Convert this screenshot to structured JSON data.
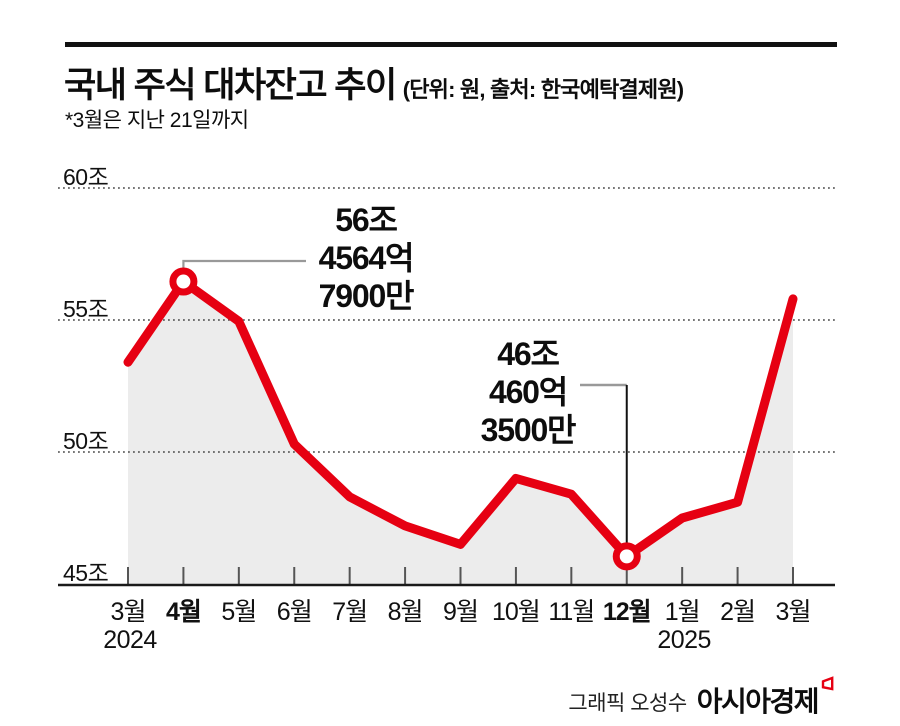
{
  "header": {
    "title": "국내 주식 대차잔고 추이",
    "unit_note": "(단위: 원, 출처: 한국예탁결제원)",
    "subtitle": "*3월은 지난 21일까지"
  },
  "chart_data": {
    "type": "area",
    "title": "국내 주식 대차잔고 추이",
    "unit": "조 원",
    "x": [
      "3월",
      "4월",
      "5월",
      "6월",
      "7월",
      "8월",
      "9월",
      "10월",
      "11월",
      "12월",
      "1월",
      "2월",
      "3월"
    ],
    "x_years": [
      {
        "label": "2024",
        "index": 0
      },
      {
        "label": "2025",
        "index": 10
      }
    ],
    "bold_x_indices": [
      1,
      9
    ],
    "values": [
      53.4,
      56.4565,
      54.95,
      50.3,
      48.3,
      47.2,
      46.5,
      49.0,
      48.4,
      46.046,
      47.5,
      48.1,
      55.8
    ],
    "ylim": [
      45,
      60
    ],
    "yticks": [
      45,
      50,
      55,
      60
    ],
    "ytick_labels": [
      "45조",
      "50조",
      "55조",
      "60조"
    ],
    "grid": "dotted horizontal, no vertical",
    "legend": "none",
    "line_color": "#e60012",
    "area_color": "#ececec",
    "axis_color": "#1a1a1a",
    "grid_color": "#4a4a4a",
    "callout_gray": "#999999",
    "callout_black": "#111111",
    "annotations": [
      {
        "lines": [
          "56조",
          "4564억",
          "7900만"
        ],
        "point_index": 1,
        "value": 56.456479,
        "marker": "open-circle"
      },
      {
        "lines": [
          "46조",
          "460억",
          "3500만"
        ],
        "point_index": 9,
        "value": 46.046035,
        "marker": "open-circle"
      }
    ]
  },
  "footer": {
    "credit": "그래픽 오성수",
    "brand": "아시아경제",
    "brand_mark": "asiae-red-logo"
  }
}
